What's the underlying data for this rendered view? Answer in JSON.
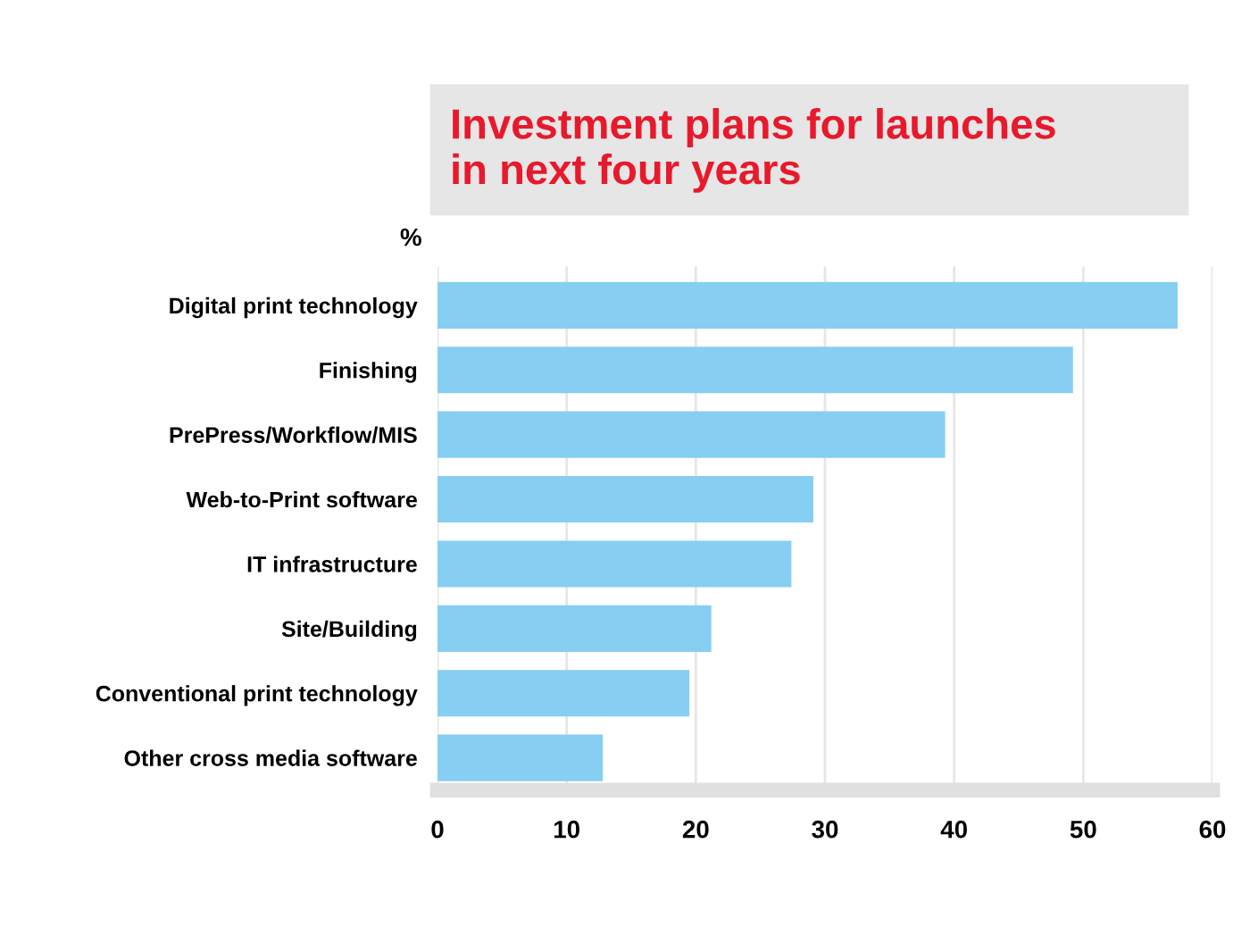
{
  "chart_data": {
    "type": "bar",
    "orientation": "horizontal",
    "title": "Investment plans for launches\nin next four years",
    "xlabel": "%",
    "categories": [
      "Digital print technology",
      "Finishing",
      "PrePress/Workflow/MIS",
      "Web-to-Print software",
      "IT infrastructure",
      "Site/Building",
      "Conventional print technology",
      "Other cross media software"
    ],
    "values": [
      57.3,
      49.2,
      39.3,
      29.1,
      27.4,
      21.2,
      19.5,
      12.8
    ],
    "color": "#87cef3",
    "xlim": [
      0,
      60
    ],
    "xticks": [
      0,
      10,
      20,
      30,
      40,
      50,
      60
    ],
    "grid": "x"
  }
}
